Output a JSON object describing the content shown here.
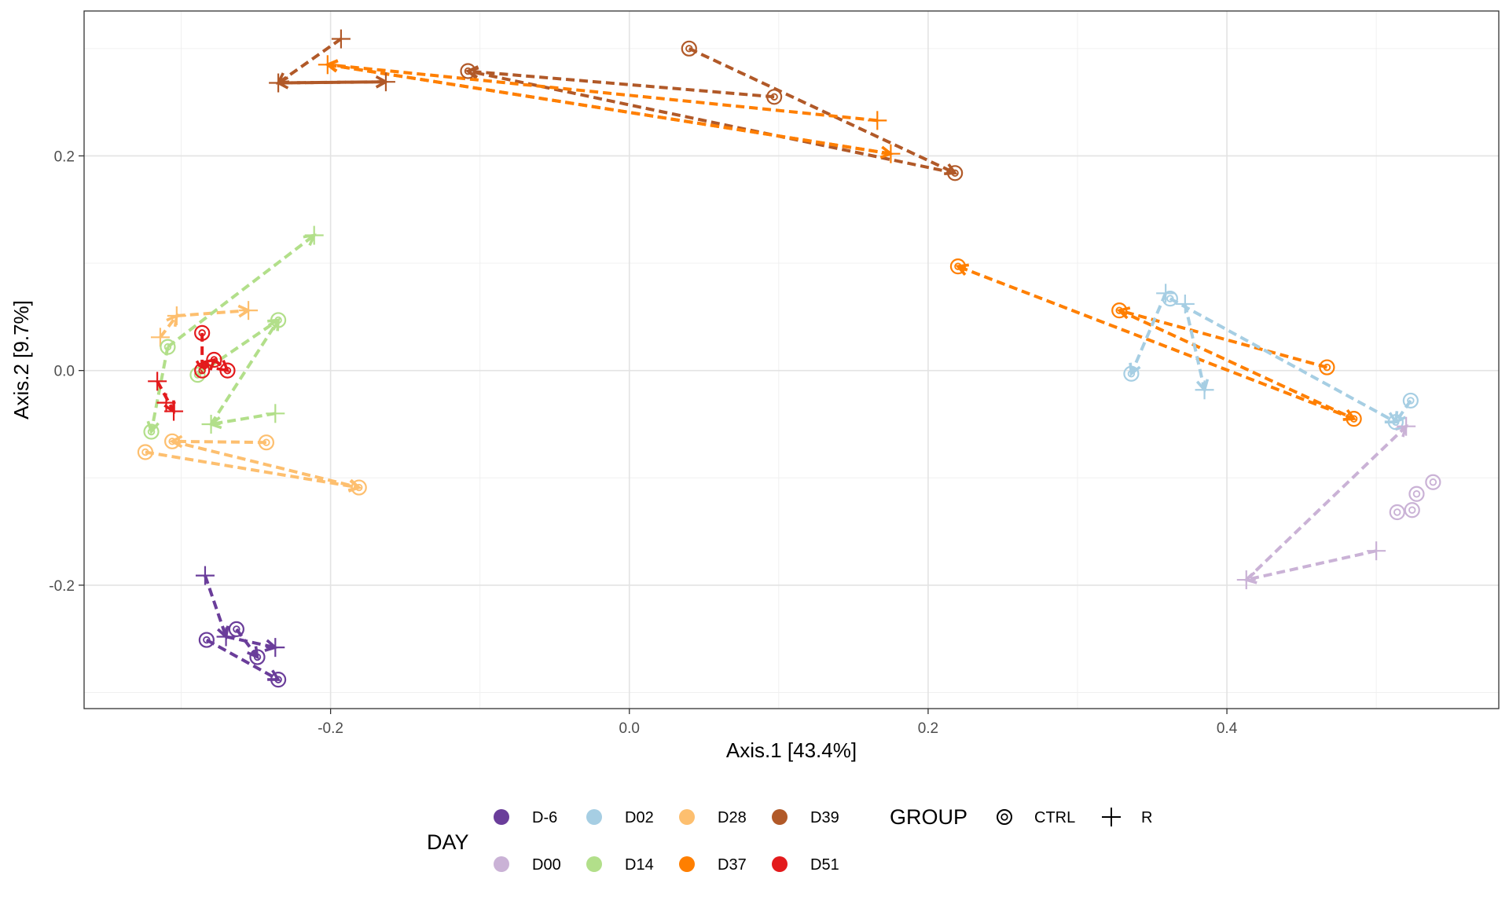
{
  "chart_data": {
    "type": "scatter",
    "xlabel": "Axis.1   [43.4%]",
    "ylabel": "Axis.2   [9.7%]",
    "xlim": [
      -0.365,
      0.582
    ],
    "ylim": [
      -0.315,
      0.335
    ],
    "x_ticks": [
      -0.2,
      0.0,
      0.2,
      0.4
    ],
    "x_tick_labels": [
      "-0.2",
      "0.0",
      "0.2",
      "0.4"
    ],
    "y_ticks": [
      -0.2,
      0.0,
      0.2
    ],
    "y_tick_labels": [
      "-0.2",
      "0.0",
      "0.2"
    ],
    "grid": true,
    "legend_position": "bottom",
    "legend": {
      "day_title": "DAY",
      "group_title": "GROUP",
      "days": [
        {
          "label": "D-6",
          "color": "#6a3d9a"
        },
        {
          "label": "D02",
          "color": "#a6cee3"
        },
        {
          "label": "D28",
          "color": "#fdbf6f"
        },
        {
          "label": "D39",
          "color": "#b15928"
        },
        {
          "label": "D00",
          "color": "#cab2d6"
        },
        {
          "label": "D14",
          "color": "#b2df8a"
        },
        {
          "label": "D37",
          "color": "#ff7f00"
        },
        {
          "label": "D51",
          "color": "#e31a1c"
        }
      ],
      "groups": [
        {
          "label": "CTRL",
          "shape": "double-circle"
        },
        {
          "label": "R",
          "shape": "plus"
        }
      ]
    },
    "series": [
      {
        "day": "D39",
        "color": "#b15928",
        "points": [
          {
            "x": -0.235,
            "y": 0.268,
            "group": "R"
          },
          {
            "x": -0.193,
            "y": 0.309,
            "group": "R"
          },
          {
            "x": -0.163,
            "y": 0.269,
            "group": "R"
          },
          {
            "x": -0.108,
            "y": 0.279,
            "group": "CTRL"
          },
          {
            "x": 0.04,
            "y": 0.3,
            "group": "CTRL"
          },
          {
            "x": 0.097,
            "y": 0.255,
            "group": "CTRL"
          },
          {
            "x": 0.218,
            "y": 0.184,
            "group": "CTRL"
          }
        ],
        "arrows": [
          [
            0.218,
            0.184,
            -0.108,
            0.279
          ],
          [
            0.097,
            0.255,
            -0.108,
            0.279
          ],
          [
            0.04,
            0.3,
            0.218,
            0.184
          ],
          [
            -0.193,
            0.309,
            -0.235,
            0.268
          ],
          [
            -0.163,
            0.269,
            -0.235,
            0.268
          ],
          [
            -0.235,
            0.268,
            -0.163,
            0.269
          ]
        ]
      },
      {
        "day": "D37",
        "color": "#ff7f00",
        "points": [
          {
            "x": -0.202,
            "y": 0.285,
            "group": "R"
          },
          {
            "x": 0.166,
            "y": 0.233,
            "group": "R"
          },
          {
            "x": 0.175,
            "y": 0.202,
            "group": "R"
          },
          {
            "x": 0.22,
            "y": 0.097,
            "group": "CTRL"
          },
          {
            "x": 0.328,
            "y": 0.056,
            "group": "CTRL"
          },
          {
            "x": 0.467,
            "y": 0.003,
            "group": "CTRL"
          },
          {
            "x": 0.485,
            "y": -0.045,
            "group": "CTRL"
          }
        ],
        "arrows": [
          [
            0.166,
            0.233,
            -0.202,
            0.285
          ],
          [
            0.175,
            0.202,
            -0.202,
            0.285
          ],
          [
            -0.202,
            0.285,
            0.175,
            0.202
          ],
          [
            0.485,
            -0.045,
            0.22,
            0.097
          ],
          [
            0.467,
            0.003,
            0.328,
            0.056
          ],
          [
            0.328,
            0.056,
            0.485,
            -0.045
          ]
        ]
      },
      {
        "day": "D02",
        "color": "#a6cee3",
        "points": [
          {
            "x": 0.359,
            "y": 0.072,
            "group": "R"
          },
          {
            "x": 0.372,
            "y": 0.062,
            "group": "R"
          },
          {
            "x": 0.385,
            "y": -0.018,
            "group": "R"
          },
          {
            "x": 0.362,
            "y": 0.067,
            "group": "CTRL"
          },
          {
            "x": 0.336,
            "y": -0.003,
            "group": "CTRL"
          },
          {
            "x": 0.523,
            "y": -0.028,
            "group": "CTRL"
          },
          {
            "x": 0.513,
            "y": -0.048,
            "group": "CTRL"
          }
        ],
        "arrows": [
          [
            0.359,
            0.072,
            0.336,
            -0.003
          ],
          [
            0.372,
            0.062,
            0.385,
            -0.018
          ],
          [
            0.362,
            0.067,
            0.513,
            -0.048
          ],
          [
            0.523,
            -0.028,
            0.513,
            -0.048
          ]
        ]
      },
      {
        "day": "D00",
        "color": "#cab2d6",
        "points": [
          {
            "x": 0.413,
            "y": -0.195,
            "group": "R"
          },
          {
            "x": 0.5,
            "y": -0.168,
            "group": "R"
          },
          {
            "x": 0.52,
            "y": -0.052,
            "group": "R"
          },
          {
            "x": 0.514,
            "y": -0.132,
            "group": "CTRL"
          },
          {
            "x": 0.524,
            "y": -0.13,
            "group": "CTRL"
          },
          {
            "x": 0.527,
            "y": -0.115,
            "group": "CTRL"
          },
          {
            "x": 0.538,
            "y": -0.104,
            "group": "CTRL"
          }
        ],
        "arrows": [
          [
            0.5,
            -0.168,
            0.413,
            -0.195
          ],
          [
            0.413,
            -0.195,
            0.52,
            -0.052
          ]
        ]
      },
      {
        "day": "D-6",
        "color": "#6a3d9a",
        "points": [
          {
            "x": -0.284,
            "y": -0.191,
            "group": "R"
          },
          {
            "x": -0.27,
            "y": -0.248,
            "group": "R"
          },
          {
            "x": -0.237,
            "y": -0.258,
            "group": "R"
          },
          {
            "x": -0.283,
            "y": -0.251,
            "group": "CTRL"
          },
          {
            "x": -0.263,
            "y": -0.241,
            "group": "CTRL"
          },
          {
            "x": -0.249,
            "y": -0.267,
            "group": "CTRL"
          },
          {
            "x": -0.235,
            "y": -0.288,
            "group": "CTRL"
          }
        ],
        "arrows": [
          [
            -0.284,
            -0.191,
            -0.27,
            -0.248
          ],
          [
            -0.27,
            -0.248,
            -0.237,
            -0.258
          ],
          [
            -0.283,
            -0.251,
            -0.235,
            -0.288
          ],
          [
            -0.263,
            -0.241,
            -0.249,
            -0.267
          ]
        ]
      },
      {
        "day": "D28",
        "color": "#fdbf6f",
        "points": [
          {
            "x": -0.303,
            "y": 0.051,
            "group": "R"
          },
          {
            "x": -0.314,
            "y": 0.031,
            "group": "R"
          },
          {
            "x": -0.255,
            "y": 0.056,
            "group": "R"
          },
          {
            "x": -0.306,
            "y": -0.066,
            "group": "CTRL"
          },
          {
            "x": -0.324,
            "y": -0.076,
            "group": "CTRL"
          },
          {
            "x": -0.243,
            "y": -0.067,
            "group": "CTRL"
          },
          {
            "x": -0.181,
            "y": -0.109,
            "group": "CTRL"
          }
        ],
        "arrows": [
          [
            -0.303,
            0.051,
            -0.255,
            0.056
          ],
          [
            -0.314,
            0.031,
            -0.303,
            0.051
          ],
          [
            -0.243,
            -0.067,
            -0.306,
            -0.066
          ],
          [
            -0.324,
            -0.076,
            -0.181,
            -0.109
          ],
          [
            -0.306,
            -0.066,
            -0.181,
            -0.109
          ]
        ]
      },
      {
        "day": "D14",
        "color": "#b2df8a",
        "points": [
          {
            "x": -0.211,
            "y": 0.126,
            "group": "R"
          },
          {
            "x": -0.237,
            "y": -0.04,
            "group": "R"
          },
          {
            "x": -0.28,
            "y": -0.05,
            "group": "R"
          },
          {
            "x": -0.235,
            "y": 0.047,
            "group": "CTRL"
          },
          {
            "x": -0.309,
            "y": 0.022,
            "group": "CTRL"
          },
          {
            "x": -0.289,
            "y": -0.004,
            "group": "CTRL"
          },
          {
            "x": -0.32,
            "y": -0.057,
            "group": "CTRL"
          }
        ],
        "arrows": [
          [
            -0.309,
            0.022,
            -0.211,
            0.126
          ],
          [
            -0.289,
            -0.004,
            -0.235,
            0.047
          ],
          [
            -0.237,
            -0.04,
            -0.28,
            -0.05
          ],
          [
            -0.28,
            -0.05,
            -0.235,
            0.047
          ],
          [
            -0.309,
            0.022,
            -0.32,
            -0.057
          ]
        ]
      },
      {
        "day": "D51",
        "color": "#e31a1c",
        "points": [
          {
            "x": -0.316,
            "y": -0.01,
            "group": "R"
          },
          {
            "x": -0.31,
            "y": -0.03,
            "group": "R"
          },
          {
            "x": -0.305,
            "y": -0.038,
            "group": "R"
          },
          {
            "x": -0.286,
            "y": 0.035,
            "group": "CTRL"
          },
          {
            "x": -0.278,
            "y": 0.01,
            "group": "CTRL"
          },
          {
            "x": -0.269,
            "y": 0.0,
            "group": "CTRL"
          },
          {
            "x": -0.286,
            "y": 0.0,
            "group": "CTRL"
          }
        ],
        "arrows": [
          [
            -0.316,
            -0.01,
            -0.305,
            -0.038
          ],
          [
            -0.286,
            0.035,
            -0.286,
            0.0
          ],
          [
            -0.278,
            0.01,
            -0.269,
            0.0
          ],
          [
            -0.286,
            0.0,
            -0.278,
            0.01
          ]
        ]
      }
    ]
  }
}
